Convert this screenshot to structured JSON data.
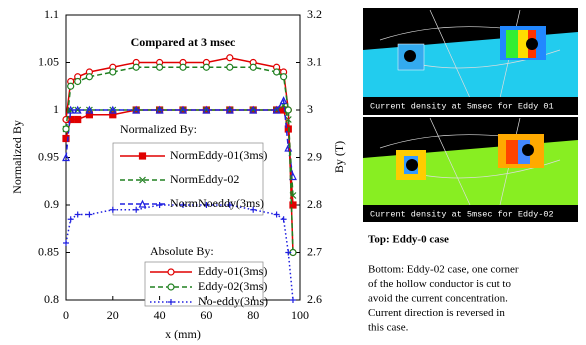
{
  "chart_data": {
    "type": "line",
    "title": "Compared at 3 msec",
    "x_label": "x (mm)",
    "y_label": "Normalized By",
    "y2_label": "By (T)",
    "x": [
      0,
      2,
      5,
      10,
      20,
      30,
      40,
      50,
      60,
      70,
      80,
      90,
      93,
      95,
      97
    ],
    "xlim": [
      0,
      100
    ],
    "xticks": [
      0,
      20,
      40,
      60,
      80,
      100
    ],
    "ylim": [
      0.8,
      1.1
    ],
    "yticks": [
      0.8,
      0.85,
      0.9,
      0.95,
      1,
      1.05,
      1.1
    ],
    "y2lim": [
      2.6,
      3.2
    ],
    "y2ticks": [
      2.6,
      2.7,
      2.8,
      2.9,
      3,
      3.1,
      3.2
    ],
    "legend_titles": [
      "Normalized By:",
      "Absolute By:"
    ],
    "series": [
      {
        "name": "NormEddy-01(3ms)",
        "color": "#e00000",
        "dash": "solid",
        "marker": "square",
        "axis": "y",
        "values": [
          0.97,
          0.99,
          0.99,
          0.995,
          0.995,
          1.0,
          1.0,
          1.0,
          1.0,
          1.0,
          1.0,
          1.0,
          1.0,
          0.98,
          0.9
        ]
      },
      {
        "name": "NormEddy-02",
        "color": "#208020",
        "dash": "dashed",
        "marker": "x",
        "axis": "y",
        "values": [
          0.98,
          1.0,
          1.0,
          1.0,
          1.0,
          1.0,
          1.0,
          1.0,
          1.0,
          1.0,
          1.0,
          1.0,
          1.005,
          0.99,
          0.91
        ]
      },
      {
        "name": "NormNoeddy(3ms)",
        "color": "#2020e0",
        "dash": "dashed",
        "marker": "triangle",
        "axis": "y",
        "values": [
          0.95,
          1.0,
          1.0,
          1.0,
          1.0,
          1.0,
          1.0,
          1.0,
          1.0,
          1.0,
          1.0,
          1.0,
          1.01,
          0.96,
          0.93
        ]
      },
      {
        "name": "Eddy-01(3ms)",
        "color": "#e00000",
        "dash": "solid",
        "marker": "circle",
        "axis": "y2",
        "values": [
          2.98,
          3.06,
          3.07,
          3.08,
          3.09,
          3.1,
          3.1,
          3.1,
          3.1,
          3.11,
          3.1,
          3.09,
          3.08,
          3.0,
          2.7
        ]
      },
      {
        "name": "Eddy-02(3ms)",
        "color": "#208020",
        "dash": "dashed",
        "marker": "circle",
        "axis": "y2",
        "values": [
          2.96,
          3.05,
          3.06,
          3.07,
          3.08,
          3.09,
          3.09,
          3.09,
          3.09,
          3.09,
          3.09,
          3.08,
          3.07,
          3.0,
          2.7
        ]
      },
      {
        "name": "No-eddy(3ms)",
        "color": "#2020e0",
        "dash": "dotted",
        "marker": "plus",
        "axis": "y2",
        "values": [
          2.72,
          2.77,
          2.78,
          2.78,
          2.79,
          2.79,
          2.8,
          2.8,
          2.8,
          2.8,
          2.79,
          2.78,
          2.77,
          2.7,
          2.6
        ]
      }
    ]
  },
  "panels": [
    {
      "caption": "Current density at 5msec for Eddy 01"
    },
    {
      "caption": "Current density at 5msec for Eddy-02"
    }
  ],
  "notes": {
    "top": "Top: Eddy-0 case",
    "bottom": [
      "Bottom: Eddy-02 case, one corner",
      "of the hollow conductor is cut to",
      "avoid the current concentration.",
      "Current direction is reversed in",
      "this case."
    ]
  }
}
